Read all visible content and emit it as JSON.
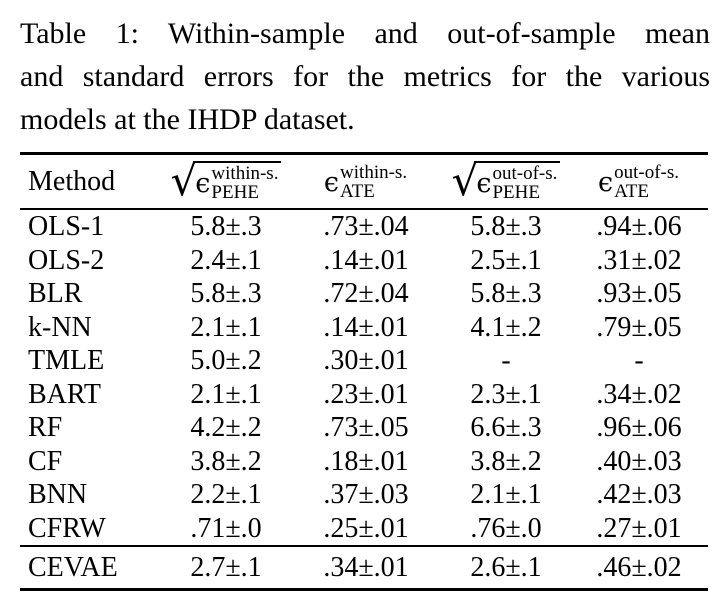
{
  "caption": {
    "lines": [
      "Table 1: Within-sample and out-of-sample mean",
      "and standard errors for the metrics for the various",
      "models at the IHDP dataset."
    ]
  },
  "table": {
    "columns": [
      {
        "label": "Method"
      },
      {
        "radical": "√",
        "symbol": "ϵ",
        "sup": "within-s.",
        "sub": "PEHE"
      },
      {
        "symbol": "ϵ",
        "sup": "within-s.",
        "sub": "ATE"
      },
      {
        "radical": "√",
        "symbol": "ϵ",
        "sup": "out-of-s.",
        "sub": "PEHE"
      },
      {
        "symbol": "ϵ",
        "sup": "out-of-s.",
        "sub": "ATE"
      }
    ],
    "rows": [
      {
        "method": "OLS-1",
        "values": [
          "5.8±.3",
          ".73±.04",
          "5.8±.3",
          ".94±.06"
        ]
      },
      {
        "method": "OLS-2",
        "values": [
          "2.4±.1",
          ".14±.01",
          "2.5±.1",
          ".31±.02"
        ]
      },
      {
        "method": "BLR",
        "values": [
          "5.8±.3",
          ".72±.04",
          "5.8±.3",
          ".93±.05"
        ]
      },
      {
        "method": "k-NN",
        "values": [
          "2.1±.1",
          ".14±.01",
          "4.1±.2",
          ".79±.05"
        ]
      },
      {
        "method": "TMLE",
        "values": [
          "5.0±.2",
          ".30±.01",
          "-",
          "-"
        ]
      },
      {
        "method": "BART",
        "values": [
          "2.1±.1",
          ".23±.01",
          "2.3±.1",
          ".34±.02"
        ]
      },
      {
        "method": "RF",
        "values": [
          "4.2±.2",
          ".73±.05",
          "6.6±.3",
          ".96±.06"
        ]
      },
      {
        "method": "CF",
        "values": [
          "3.8±.2",
          ".18±.01",
          "3.8±.2",
          ".40±.03"
        ]
      },
      {
        "method": "BNN",
        "values": [
          "2.2±.1",
          ".37±.03",
          "2.1±.1",
          ".42±.03"
        ]
      },
      {
        "method": "CFRW",
        "values": [
          ".71±.0",
          ".25±.01",
          ".76±.0",
          ".27±.01"
        ]
      }
    ],
    "footer": {
      "method": "CEVAE",
      "values": [
        "2.7±.1",
        ".34±.01",
        "2.6±.1",
        ".46±.02"
      ]
    },
    "colors": {
      "text": "#000000",
      "background": "#ffffff",
      "rule": "#000000"
    }
  }
}
